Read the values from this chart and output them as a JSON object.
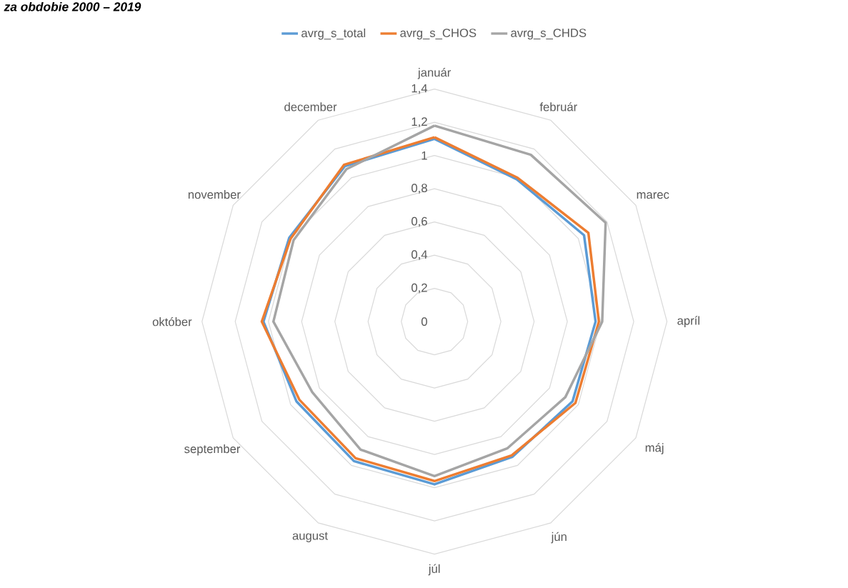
{
  "chart_data": {
    "type": "radar",
    "title": "za obdobie 2000 – 2019",
    "categories": [
      "január",
      "február",
      "marec",
      "apríl",
      "máj",
      "jún",
      "júl",
      "august",
      "september",
      "október",
      "november",
      "december"
    ],
    "series": [
      {
        "name": "avrg_s_total",
        "color": "#5b9bd5",
        "values": [
          1.1,
          0.99,
          1.04,
          0.97,
          0.96,
          0.94,
          0.98,
          0.97,
          0.96,
          1.03,
          1.01,
          1.08
        ]
      },
      {
        "name": "avrg_s_CHOS",
        "color": "#ed7d31",
        "values": [
          1.11,
          1.0,
          1.07,
          0.99,
          0.98,
          0.93,
          0.96,
          0.95,
          0.94,
          1.04,
          1.0,
          1.09
        ]
      },
      {
        "name": "avrg_s_CHDS",
        "color": "#a5a5a5",
        "values": [
          1.18,
          1.16,
          1.19,
          1.01,
          0.91,
          0.88,
          0.93,
          0.89,
          0.85,
          0.97,
          0.98,
          1.06
        ]
      }
    ],
    "ylim": [
      0,
      1.4
    ],
    "yticks": [
      0,
      {
        "value": 0.2,
        "label": "0,2"
      },
      {
        "value": 0.4,
        "label": "0,4"
      },
      {
        "value": 0.6,
        "label": "0,6"
      },
      {
        "value": 0.8,
        "label": "0,8"
      },
      1,
      {
        "value": 1.2,
        "label": "1,2"
      },
      {
        "value": 1.4,
        "label": "1,4"
      }
    ],
    "grid": true,
    "legend": "top"
  }
}
